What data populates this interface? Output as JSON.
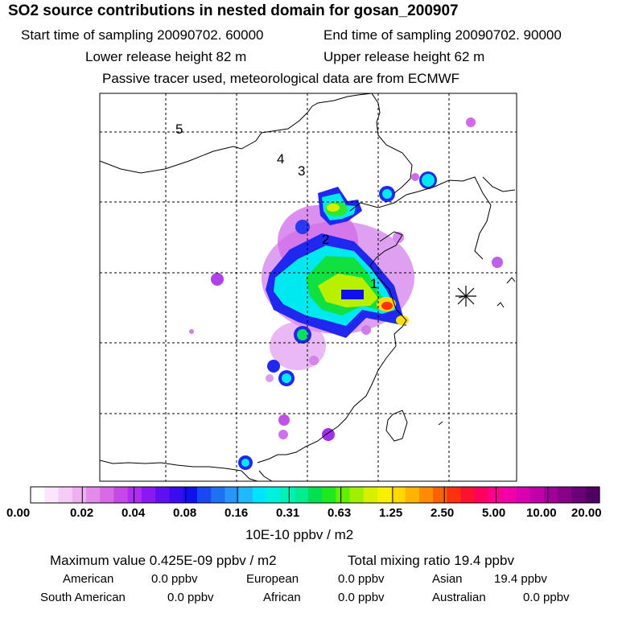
{
  "header": {
    "title": "SO2 source contributions in nested domain for gosan_200907",
    "start_time": "Start time of sampling 20090702. 60000",
    "end_time": "End time of sampling 20090702. 90000",
    "lower_height": "Lower release height   82 m",
    "upper_height": "Upper release height   62 m",
    "tracer_note": "Passive tracer used, meteorological data are from ECMWF"
  },
  "map": {
    "trajectory_labels": [
      "1",
      "2",
      "3",
      "4",
      "5"
    ],
    "receptor_symbol": "gosan-receptor"
  },
  "colorbar": {
    "tick_labels": [
      "0.00",
      "0.02",
      "0.04",
      "0.08",
      "0.16",
      "0.31",
      "0.63",
      "1.25",
      "2.50",
      "5.00",
      "10.00",
      "20.00"
    ],
    "unit": "10E-10 ppbv / m2",
    "colors": [
      "#ffffff",
      "#fbe6fb",
      "#f5ccf5",
      "#eeb0f0",
      "#e48ae8",
      "#d86ae8",
      "#c548e8",
      "#b02cf0",
      "#8a18f0",
      "#6010f0",
      "#3a0cf0",
      "#1010ee",
      "#1848f0",
      "#2070f4",
      "#2896f8",
      "#20b8fa",
      "#00e4ff",
      "#00f0e0",
      "#00f0b8",
      "#00ec90",
      "#00e050",
      "#20e820",
      "#60f000",
      "#a0f000",
      "#d8f000",
      "#f8f000",
      "#ffd800",
      "#ffb400",
      "#ff8c00",
      "#ff6000",
      "#ff3010",
      "#ff1030",
      "#ff0060",
      "#ff0090",
      "#f000a8",
      "#d800b0",
      "#c000a8",
      "#a00098",
      "#880088",
      "#6c0078",
      "#500060"
    ]
  },
  "summary": {
    "max_value": "Maximum value  0.425E-09 ppbv / m2",
    "total_mixing": "Total mixing ratio        19.4 ppbv",
    "american": "American",
    "american_val": "0.0 ppbv",
    "european": "European",
    "european_val": "0.0 ppbv",
    "asian": "Asian",
    "asian_val": "19.4 ppbv",
    "south_american": "South American",
    "south_american_val": "0.0 ppbv",
    "african": "African",
    "african_val": "0.0 ppbv",
    "australian": "Australian",
    "australian_val": "0.0 ppbv"
  }
}
